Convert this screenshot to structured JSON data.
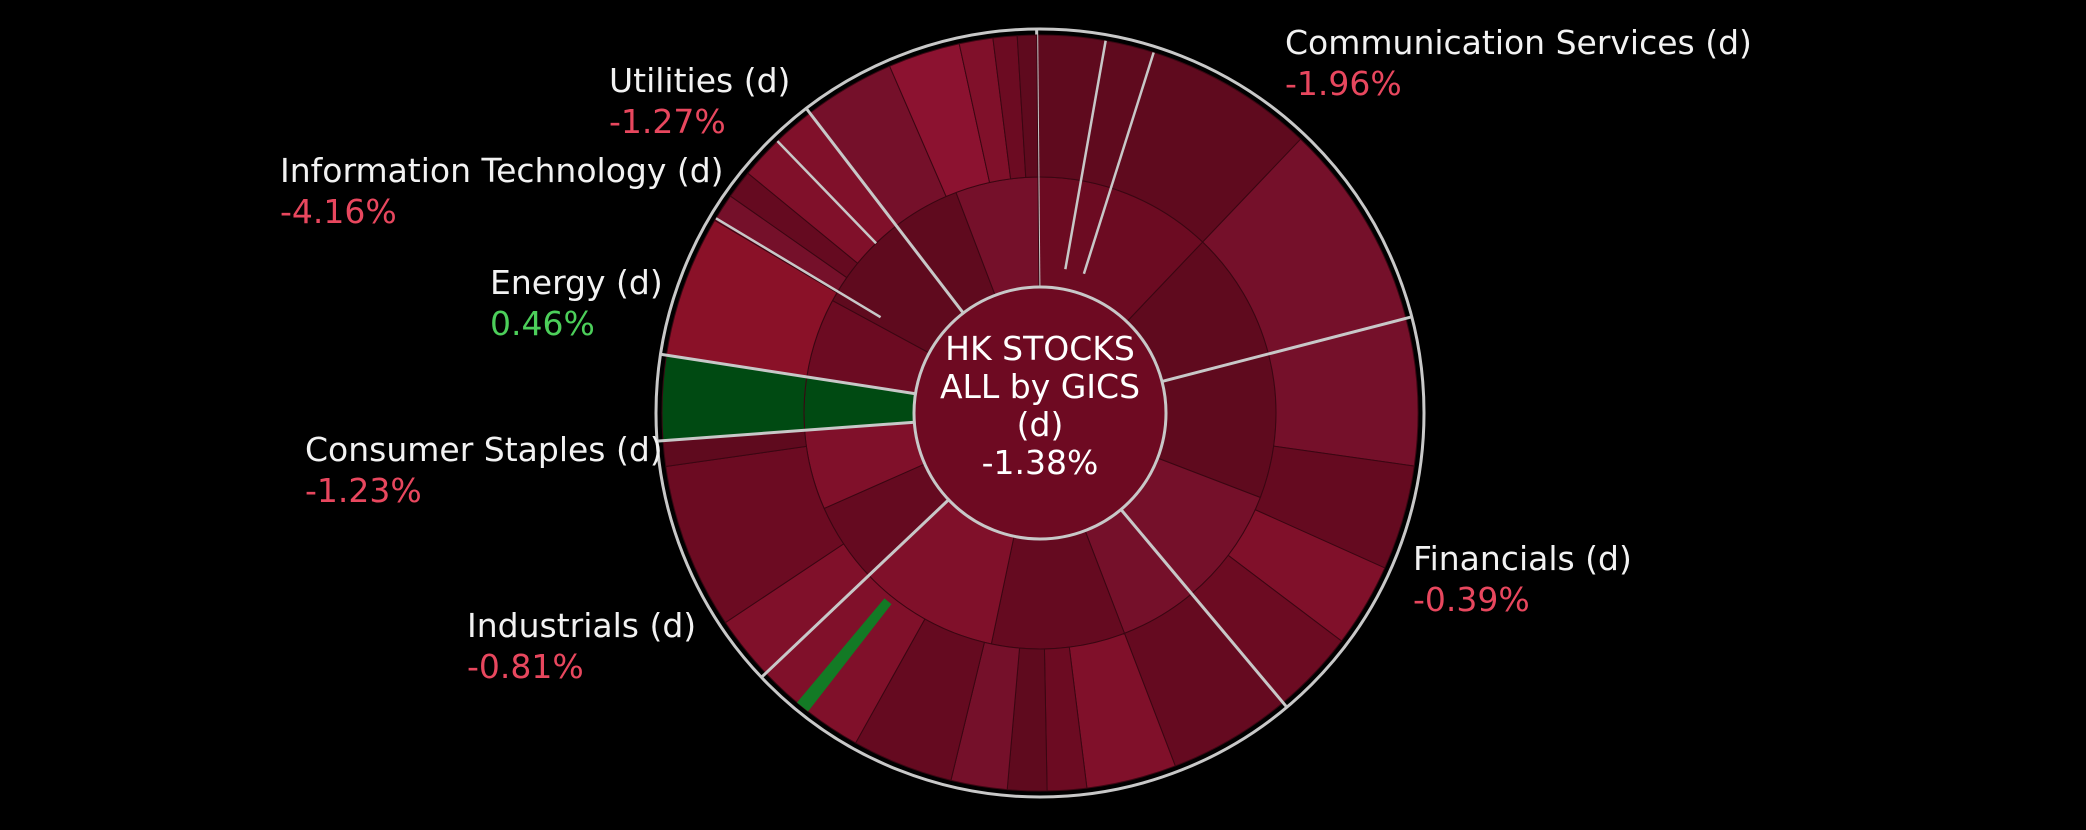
{
  "chart_data": {
    "type": "sunburst",
    "center": {
      "title_lines": [
        "HK STOCKS",
        "ALL by GICS",
        "(d)"
      ],
      "change": "-1.38%",
      "color": "#6e0a22"
    },
    "colors": {
      "background": "#000000",
      "negative_text": "#e8475e",
      "positive_text": "#4ccf5a",
      "negative_fill": "#6e0a22",
      "positive_fill": "#004a12",
      "separator": "#c8c8c8"
    },
    "sectors": [
      {
        "name": "Communication Services (d)",
        "change": "-1.96%",
        "value": -1.96
      },
      {
        "name": "Financials (d)",
        "change": "-0.39%",
        "value": -0.39
      },
      {
        "name": "Industrials (d)",
        "change": "-0.81%",
        "value": -0.81
      },
      {
        "name": "Consumer Staples (d)",
        "change": "-1.23%",
        "value": -1.23
      },
      {
        "name": "Energy (d)",
        "change": "0.46%",
        "value": 0.46
      },
      {
        "name": "Information Technology (d)",
        "change": "-4.16%",
        "value": -4.16
      },
      {
        "name": "Utilities (d)",
        "change": "-1.27%",
        "value": -1.27
      }
    ]
  }
}
